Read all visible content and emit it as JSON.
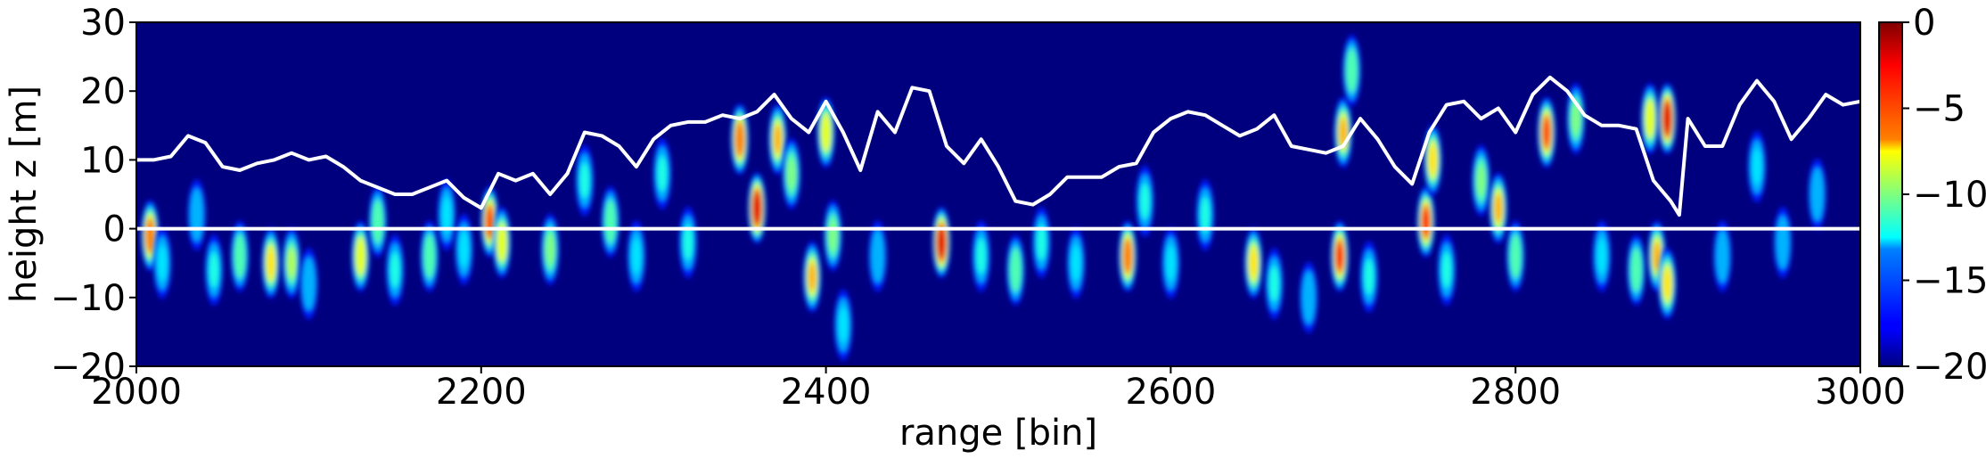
{
  "chart_data": {
    "type": "heatmap",
    "xlabel": "range [bin]",
    "ylabel": "height z [m]",
    "xlim": [
      2000,
      3000
    ],
    "ylim": [
      -20,
      30
    ],
    "x_ticks": [
      2000,
      2200,
      2400,
      2600,
      2800,
      3000
    ],
    "y_ticks": [
      -20,
      -10,
      0,
      10,
      20,
      30
    ],
    "colormap": "jet",
    "colorbar": {
      "range": [
        -20,
        0
      ],
      "ticks": [
        0,
        -5,
        -10,
        -15,
        -20
      ],
      "position": "right"
    },
    "background_value": -20,
    "reference_line": {
      "y": 0,
      "color": "#ffffff"
    },
    "blobs": [
      {
        "x": 2008,
        "z": -1,
        "v": -5
      },
      {
        "x": 2015,
        "z": -5,
        "v": -13
      },
      {
        "x": 2035,
        "z": 2,
        "v": -14
      },
      {
        "x": 2045,
        "z": -6,
        "v": -12
      },
      {
        "x": 2060,
        "z": -4,
        "v": -11
      },
      {
        "x": 2078,
        "z": -5,
        "v": -7
      },
      {
        "x": 2090,
        "z": -5,
        "v": -9
      },
      {
        "x": 2100,
        "z": -8,
        "v": -14
      },
      {
        "x": 2130,
        "z": -4,
        "v": -8
      },
      {
        "x": 2140,
        "z": 1,
        "v": -11
      },
      {
        "x": 2150,
        "z": -6,
        "v": -12
      },
      {
        "x": 2170,
        "z": -4,
        "v": -11
      },
      {
        "x": 2180,
        "z": 2,
        "v": -13
      },
      {
        "x": 2190,
        "z": -3,
        "v": -13
      },
      {
        "x": 2205,
        "z": 1,
        "v": -4
      },
      {
        "x": 2212,
        "z": -2,
        "v": -8
      },
      {
        "x": 2240,
        "z": -3,
        "v": -10
      },
      {
        "x": 2260,
        "z": 7,
        "v": -12
      },
      {
        "x": 2275,
        "z": 1,
        "v": -11
      },
      {
        "x": 2290,
        "z": -4,
        "v": -13
      },
      {
        "x": 2305,
        "z": 8,
        "v": -12
      },
      {
        "x": 2320,
        "z": -2,
        "v": -12
      },
      {
        "x": 2350,
        "z": 13,
        "v": -5
      },
      {
        "x": 2360,
        "z": 3,
        "v": -2
      },
      {
        "x": 2372,
        "z": 13,
        "v": -6
      },
      {
        "x": 2380,
        "z": 8,
        "v": -10
      },
      {
        "x": 2392,
        "z": -7,
        "v": -6
      },
      {
        "x": 2400,
        "z": 14,
        "v": -8
      },
      {
        "x": 2404,
        "z": -1,
        "v": -10
      },
      {
        "x": 2410,
        "z": -14,
        "v": -13
      },
      {
        "x": 2430,
        "z": -4,
        "v": -14
      },
      {
        "x": 2467,
        "z": -2,
        "v": -2
      },
      {
        "x": 2490,
        "z": -4,
        "v": -12
      },
      {
        "x": 2510,
        "z": -6,
        "v": -11
      },
      {
        "x": 2525,
        "z": -2,
        "v": -12
      },
      {
        "x": 2545,
        "z": -5,
        "v": -13
      },
      {
        "x": 2575,
        "z": -4,
        "v": -5
      },
      {
        "x": 2585,
        "z": 4,
        "v": -12
      },
      {
        "x": 2600,
        "z": -5,
        "v": -13
      },
      {
        "x": 2620,
        "z": 2,
        "v": -12
      },
      {
        "x": 2648,
        "z": -5,
        "v": -7
      },
      {
        "x": 2660,
        "z": -8,
        "v": -12
      },
      {
        "x": 2680,
        "z": -10,
        "v": -14
      },
      {
        "x": 2698,
        "z": -4,
        "v": -3
      },
      {
        "x": 2700,
        "z": 14,
        "v": -6
      },
      {
        "x": 2705,
        "z": 23,
        "v": -11
      },
      {
        "x": 2715,
        "z": -7,
        "v": -12
      },
      {
        "x": 2748,
        "z": 1,
        "v": -3
      },
      {
        "x": 2752,
        "z": 10,
        "v": -7
      },
      {
        "x": 2760,
        "z": -6,
        "v": -12
      },
      {
        "x": 2780,
        "z": 7,
        "v": -10
      },
      {
        "x": 2790,
        "z": 3,
        "v": -6
      },
      {
        "x": 2800,
        "z": -4,
        "v": -11
      },
      {
        "x": 2818,
        "z": 14,
        "v": -4
      },
      {
        "x": 2835,
        "z": 16,
        "v": -10
      },
      {
        "x": 2850,
        "z": -4,
        "v": -13
      },
      {
        "x": 2870,
        "z": -6,
        "v": -11
      },
      {
        "x": 2878,
        "z": 16,
        "v": -8
      },
      {
        "x": 2882,
        "z": -4,
        "v": -6
      },
      {
        "x": 2888,
        "z": 16,
        "v": -2
      },
      {
        "x": 2888,
        "z": -8,
        "v": -7
      },
      {
        "x": 2920,
        "z": -4,
        "v": -14
      },
      {
        "x": 2940,
        "z": 9,
        "v": -13
      },
      {
        "x": 2955,
        "z": -2,
        "v": -14
      },
      {
        "x": 2975,
        "z": 5,
        "v": -14
      }
    ],
    "series": [
      {
        "values": [
          [
            2000,
            10
          ],
          [
            2010,
            10
          ],
          [
            2020,
            10.5
          ],
          [
            2030,
            13.5
          ],
          [
            2040,
            12.5
          ],
          [
            2050,
            9
          ],
          [
            2060,
            8.5
          ],
          [
            2070,
            9.5
          ],
          [
            2080,
            10
          ],
          [
            2090,
            11
          ],
          [
            2100,
            10
          ],
          [
            2110,
            10.5
          ],
          [
            2120,
            9
          ],
          [
            2130,
            7
          ],
          [
            2140,
            6
          ],
          [
            2150,
            5
          ],
          [
            2160,
            5
          ],
          [
            2170,
            6
          ],
          [
            2180,
            7
          ],
          [
            2190,
            4.5
          ],
          [
            2200,
            3
          ],
          [
            2210,
            8
          ],
          [
            2220,
            7
          ],
          [
            2230,
            8
          ],
          [
            2240,
            5
          ],
          [
            2250,
            8
          ],
          [
            2260,
            14
          ],
          [
            2270,
            13.5
          ],
          [
            2280,
            12
          ],
          [
            2290,
            9
          ],
          [
            2300,
            13
          ],
          [
            2310,
            15
          ],
          [
            2320,
            15.5
          ],
          [
            2330,
            15.5
          ],
          [
            2340,
            16.5
          ],
          [
            2350,
            16
          ],
          [
            2360,
            17
          ],
          [
            2370,
            19.5
          ],
          [
            2380,
            16
          ],
          [
            2390,
            14
          ],
          [
            2400,
            18.5
          ],
          [
            2410,
            14
          ],
          [
            2420,
            8.5
          ],
          [
            2430,
            17
          ],
          [
            2440,
            14
          ],
          [
            2450,
            20.5
          ],
          [
            2460,
            20
          ],
          [
            2470,
            12
          ],
          [
            2480,
            9.5
          ],
          [
            2490,
            13
          ],
          [
            2500,
            9
          ],
          [
            2510,
            4
          ],
          [
            2520,
            3.5
          ],
          [
            2530,
            5
          ],
          [
            2540,
            7.5
          ],
          [
            2550,
            7.5
          ],
          [
            2560,
            7.5
          ],
          [
            2570,
            9
          ],
          [
            2580,
            9.5
          ],
          [
            2590,
            14
          ],
          [
            2600,
            16
          ],
          [
            2610,
            17
          ],
          [
            2620,
            16.5
          ],
          [
            2630,
            15
          ],
          [
            2640,
            13.5
          ],
          [
            2650,
            14.5
          ],
          [
            2660,
            16.5
          ],
          [
            2670,
            12
          ],
          [
            2680,
            11.5
          ],
          [
            2690,
            11
          ],
          [
            2700,
            12
          ],
          [
            2710,
            16
          ],
          [
            2720,
            13
          ],
          [
            2730,
            9
          ],
          [
            2740,
            6.5
          ],
          [
            2750,
            14
          ],
          [
            2760,
            18
          ],
          [
            2770,
            18.5
          ],
          [
            2780,
            16
          ],
          [
            2790,
            17.5
          ],
          [
            2800,
            14
          ],
          [
            2810,
            19.5
          ],
          [
            2820,
            22
          ],
          [
            2830,
            20
          ],
          [
            2840,
            16.5
          ],
          [
            2850,
            15
          ],
          [
            2860,
            15
          ],
          [
            2870,
            14.5
          ],
          [
            2880,
            7
          ],
          [
            2890,
            4
          ],
          [
            2895,
            2
          ],
          [
            2900,
            16
          ],
          [
            2910,
            12
          ],
          [
            2920,
            12
          ],
          [
            2930,
            18
          ],
          [
            2940,
            21.5
          ],
          [
            2950,
            18.5
          ],
          [
            2960,
            13
          ],
          [
            2970,
            16
          ],
          [
            2980,
            19.5
          ],
          [
            2990,
            18
          ],
          [
            3000,
            18.5
          ]
        ]
      }
    ]
  }
}
